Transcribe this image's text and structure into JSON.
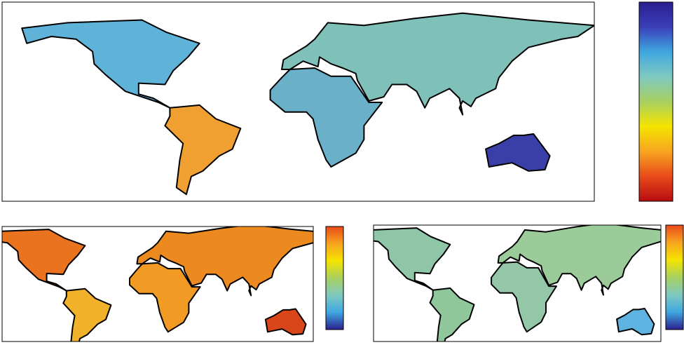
{
  "panels": [
    {
      "colormap": [
        "#2b1f8f",
        "#3a3fb8",
        "#3fa7e0",
        "#7fc9c0",
        "#a8d060",
        "#f5e400",
        "#f7a51f",
        "#e84a1a",
        "#b80d10"
      ],
      "land_colors": [
        "#5fb3d8",
        "#f0a030",
        "#7fc0b8",
        "#6ab0c8",
        "#3a3fa8"
      ]
    },
    {
      "colormap": [
        "#2b1f8f",
        "#3fa7e0",
        "#7fc9c0",
        "#a8d060",
        "#f5e400",
        "#f7a51f",
        "#e84a1a"
      ],
      "land_colors": [
        "#e9731e",
        "#f2b12a",
        "#ec8a20",
        "#f19a24",
        "#d9461a"
      ]
    },
    {
      "colormap": [
        "#2b1f8f",
        "#3fa7e0",
        "#7fc9c0",
        "#a8d060",
        "#f5e400",
        "#f7a51f",
        "#e84a1a"
      ],
      "land_colors": [
        "#8fc6a8",
        "#8fc79a",
        "#9ccb9a",
        "#93c7a8",
        "#5fb3e0"
      ]
    }
  ]
}
